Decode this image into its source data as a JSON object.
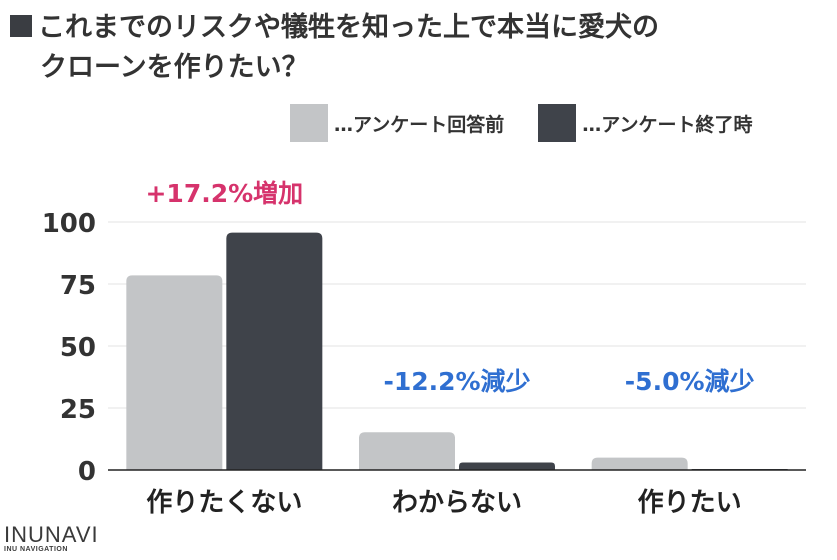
{
  "title": {
    "line1": "これまでのリスクや犠牲を知った上で本当に愛犬の",
    "line2": "クローンを作りたい？"
  },
  "colors": {
    "series_before": "#c3c5c7",
    "series_after": "#3f434a",
    "increase": "#d6336c",
    "decrease": "#2f6fd1",
    "title_marker": "#3a3d42"
  },
  "logo": {
    "main": "INUNAVI",
    "sub": "INU NAVIGATION"
  },
  "chart_data": {
    "type": "bar",
    "categories": [
      "作りたくない",
      "わからない",
      "作りたい"
    ],
    "series": [
      {
        "name": "…アンケート回答前",
        "values": [
          78.5,
          15.2,
          5.0
        ]
      },
      {
        "name": "…アンケート終了時",
        "values": [
          95.7,
          3.0,
          0.0
        ]
      }
    ],
    "yticks": [
      "0",
      "25",
      "50",
      "75",
      "100"
    ],
    "ylim": [
      0,
      100
    ],
    "grid": true,
    "legend": "top-right",
    "annotations": [
      {
        "category": "作りたくない",
        "text": "+17.2%増加",
        "kind": "increase"
      },
      {
        "category": "わからない",
        "text": "-12.2%減少",
        "kind": "decrease"
      },
      {
        "category": "作りたい",
        "text": "-5.0%減少",
        "kind": "decrease"
      }
    ]
  }
}
